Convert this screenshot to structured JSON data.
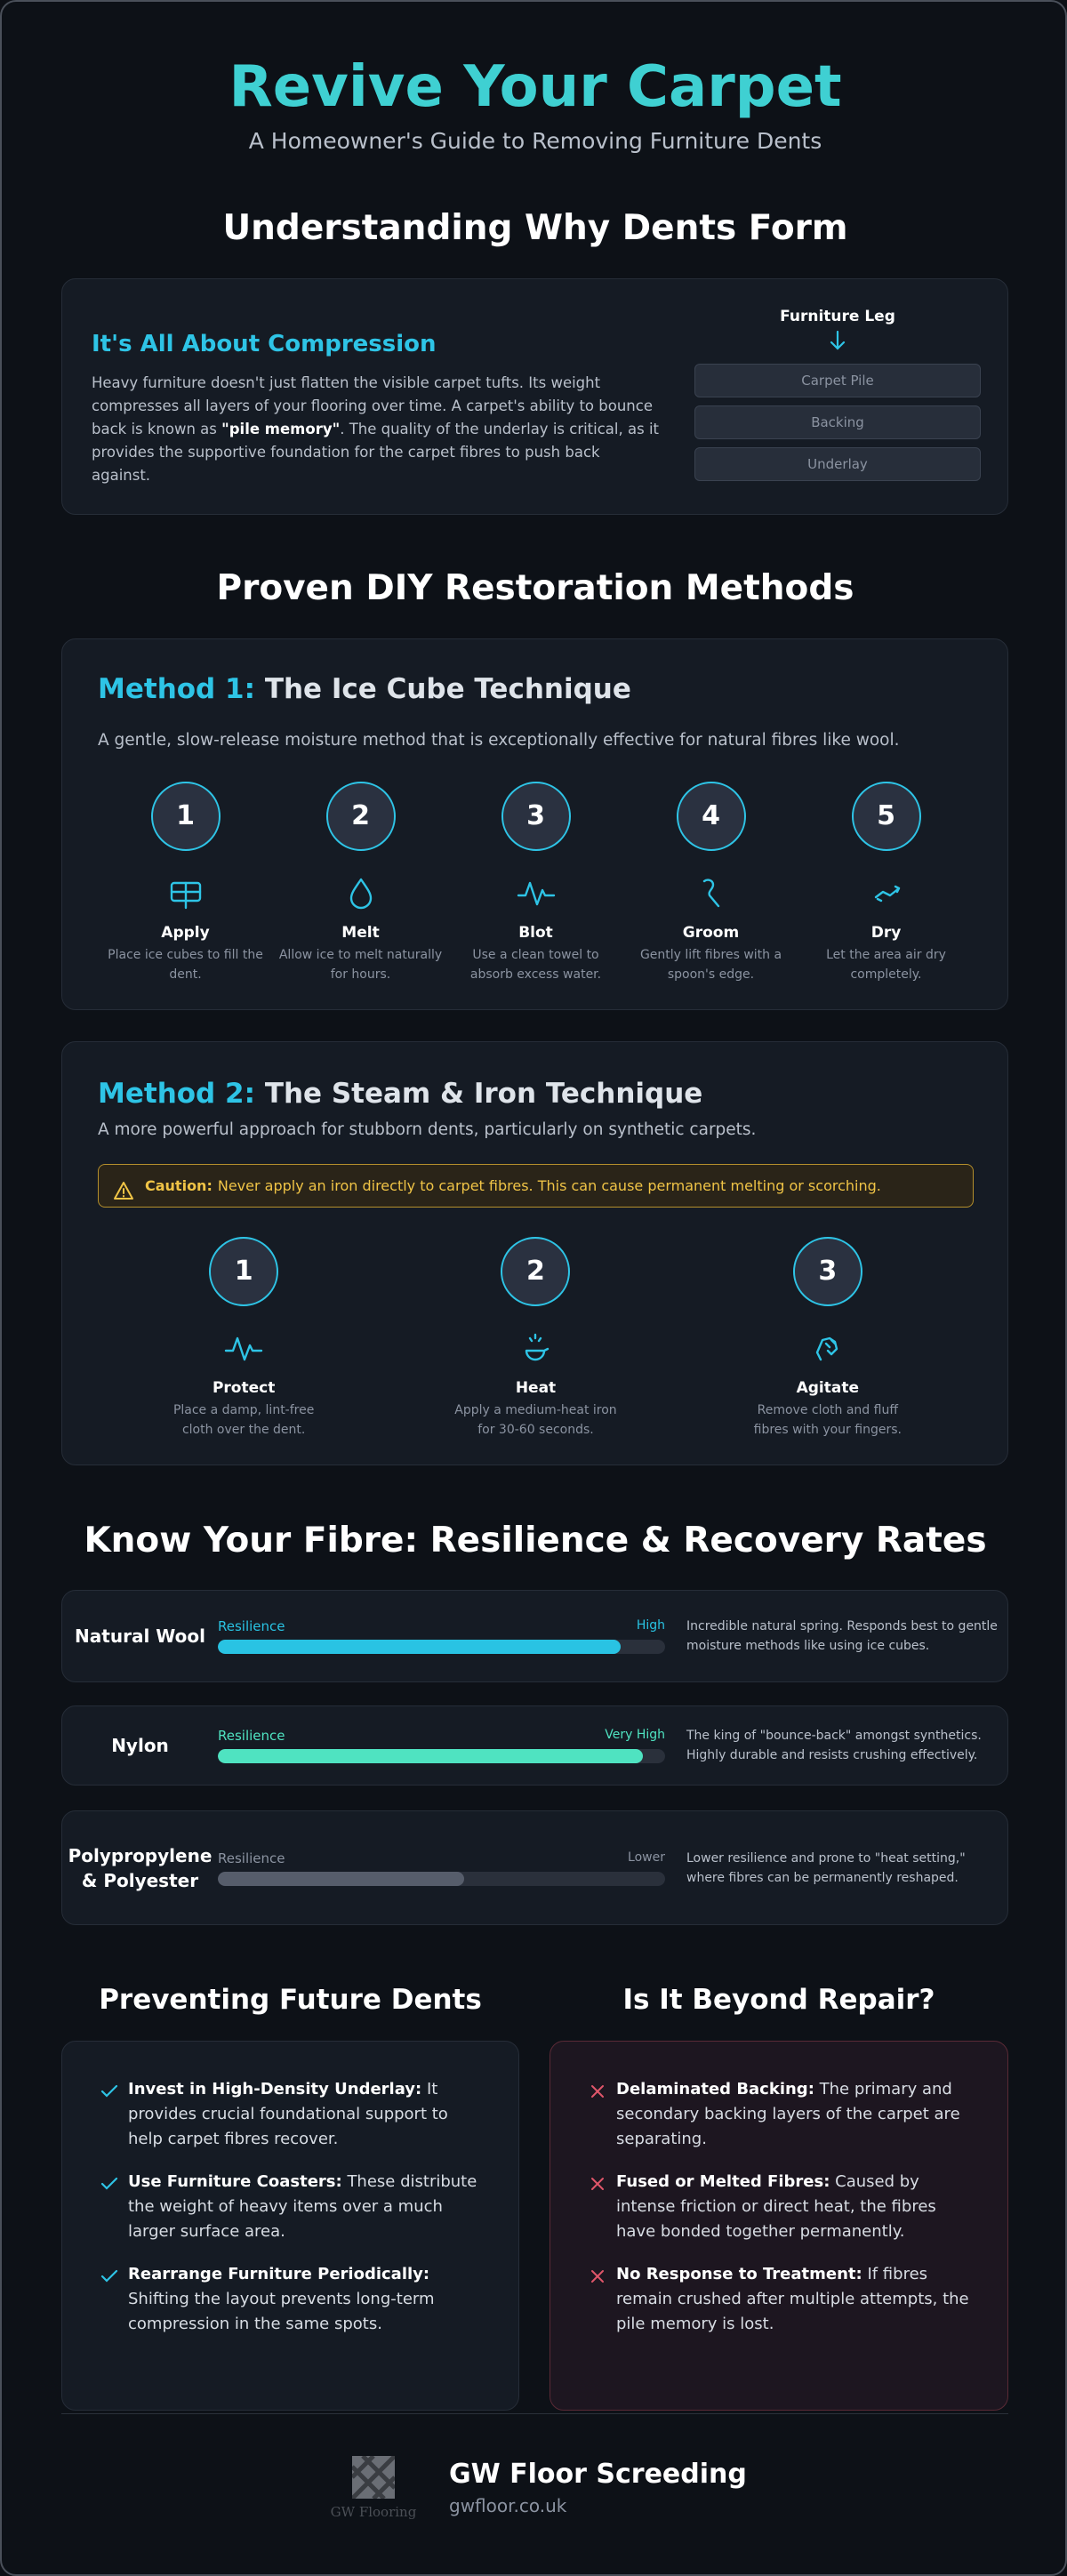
{
  "header": {
    "title": "Revive Your Carpet",
    "subtitle": "A Homeowner's Guide to Removing Furniture Dents"
  },
  "understanding": {
    "heading": "Understanding Why Dents Form",
    "card": {
      "title": "It's All About Compression",
      "text_before": "Heavy furniture doesn't just flatten the visible carpet tufts. Its weight compresses all layers of your flooring over time. A carpet's ability to bounce back is known as ",
      "emphasis": "\"pile memory\"",
      "text_after": ". The quality of the underlay is critical, as it provides the supportive foundation for the carpet fibres to push back against."
    },
    "diagram": {
      "label": "Furniture Leg",
      "layers": [
        "Carpet Pile",
        "Backing",
        "Underlay"
      ]
    }
  },
  "methods": {
    "heading": "Proven DIY Restoration Methods",
    "items": [
      {
        "label": "Method 1:",
        "name": "The Ice Cube Technique",
        "description": "A gentle, slow-release moisture method that is exceptionally effective for natural fibres like wool.",
        "steps": [
          {
            "number": "1",
            "title": "Apply",
            "text": "Place ice cubes to fill the dent."
          },
          {
            "number": "2",
            "title": "Melt",
            "text": "Allow ice to melt naturally for hours."
          },
          {
            "number": "3",
            "title": "Blot",
            "text": "Use a clean towel to absorb excess water."
          },
          {
            "number": "4",
            "title": "Groom",
            "text": "Gently lift fibres with a spoon's edge."
          },
          {
            "number": "5",
            "title": "Dry",
            "text": "Let the area air dry completely."
          }
        ]
      },
      {
        "label": "Method 2:",
        "name": "The Steam & Iron Technique",
        "description": "A more powerful approach for stubborn dents, particularly on synthetic carpets.",
        "caution": {
          "label": "Caution:",
          "text": "Never apply an iron directly to carpet fibres. This can cause permanent melting or scorching."
        },
        "steps": [
          {
            "number": "1",
            "title": "Protect",
            "text": "Place a damp, lint-free cloth over the dent."
          },
          {
            "number": "2",
            "title": "Heat",
            "text": "Apply a medium-heat iron for 30-60 seconds."
          },
          {
            "number": "3",
            "title": "Agitate",
            "text": "Remove cloth and fluff fibres with your fingers."
          }
        ]
      }
    ]
  },
  "fibres": {
    "heading": "Know Your Fibre: Resilience & Recovery Rates",
    "rows": [
      {
        "name": "Natural Wool",
        "metric": "Resilience",
        "rating": "High",
        "resilience": 90,
        "color": "#29c3e3",
        "description": "Incredible natural spring. Responds best to gentle moisture methods like using ice cubes."
      },
      {
        "name": "Nylon",
        "metric": "Resilience",
        "rating": "Very High",
        "resilience": 95,
        "color": "#4fe3c1",
        "description": "The king of \"bounce-back\" amongst synthetics. Highly durable and resists crushing effectively."
      },
      {
        "name": "Polypropylene & Polyester",
        "metric": "Resilience",
        "rating": "Lower",
        "resilience": 55,
        "color": "#565d6b",
        "description": "Lower resilience and prone to \"heat setting,\" where fibres can be permanently reshaped."
      }
    ]
  },
  "prevention": {
    "heading": "Preventing Future Dents",
    "items": [
      {
        "title": "Invest in High-Density Underlay:",
        "text": "It provides crucial foundational support to help carpet fibres recover."
      },
      {
        "title": "Use Furniture Coasters:",
        "text": "These distribute the weight of heavy items over a much larger surface area."
      },
      {
        "title": "Rearrange Furniture Periodically:",
        "text": "Shifting the layout prevents long-term compression in the same spots."
      }
    ]
  },
  "repair": {
    "heading": "Is It Beyond Repair?",
    "items": [
      {
        "title": "Delaminated Backing:",
        "text": "The primary and secondary backing layers of the carpet are separating."
      },
      {
        "title": "Fused or Melted Fibres:",
        "text": "Caused by intense friction or direct heat, the fibres have bonded together permanently."
      },
      {
        "title": "No Response to Treatment:",
        "text": "If fibres remain crushed after multiple attempts, the pile memory is lost."
      }
    ]
  },
  "footer": {
    "logo_text": "GW Flooring",
    "brand": "GW Floor Screeding",
    "url": "gwfloor.co.uk"
  }
}
